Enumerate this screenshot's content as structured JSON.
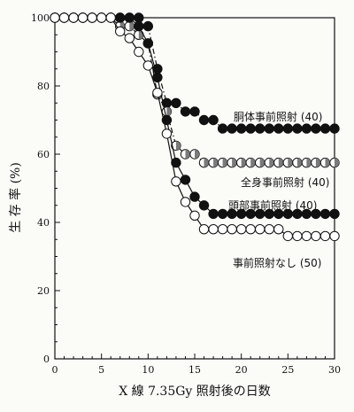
{
  "chart_data": {
    "type": "line",
    "title": "",
    "xlabel": "X 線 7.35Gy 照射後の日数",
    "ylabel": "生 存 率 (%)",
    "xlim": [
      0,
      30
    ],
    "ylim": [
      0,
      100
    ],
    "xticks": [
      0,
      5,
      10,
      15,
      20,
      25,
      30
    ],
    "yticks": [
      0,
      20,
      40,
      60,
      80,
      100
    ],
    "grid": false,
    "legend": "inline labels at right end of each curve",
    "series": [
      {
        "name": "胴体事前照射 (40)",
        "marker": "filled-circle",
        "linestyle": "dashdot",
        "color": "#111111",
        "points": [
          [
            0,
            100
          ],
          [
            1,
            100
          ],
          [
            2,
            100
          ],
          [
            3,
            100
          ],
          [
            4,
            100
          ],
          [
            5,
            100
          ],
          [
            6,
            100
          ],
          [
            7,
            100
          ],
          [
            8,
            100
          ],
          [
            9,
            100
          ],
          [
            10,
            97.5
          ],
          [
            11,
            85
          ],
          [
            12,
            75
          ],
          [
            13,
            75
          ],
          [
            14,
            72.5
          ],
          [
            15,
            72.5
          ],
          [
            16,
            70
          ],
          [
            17,
            70
          ],
          [
            18,
            67.5
          ],
          [
            19,
            67.5
          ],
          [
            20,
            67.5
          ],
          [
            21,
            67.5
          ],
          [
            22,
            67.5
          ],
          [
            23,
            67.5
          ],
          [
            24,
            67.5
          ],
          [
            25,
            67.5
          ],
          [
            26,
            67.5
          ],
          [
            27,
            67.5
          ],
          [
            28,
            67.5
          ],
          [
            29,
            67.5
          ],
          [
            30,
            67.5
          ]
        ]
      },
      {
        "name": "全身事前照射 (40)",
        "marker": "half-filled-circle",
        "linestyle": "dashdot",
        "color": "#111111",
        "points": [
          [
            0,
            100
          ],
          [
            1,
            100
          ],
          [
            2,
            100
          ],
          [
            3,
            100
          ],
          [
            4,
            100
          ],
          [
            5,
            100
          ],
          [
            6,
            100
          ],
          [
            7,
            97.5
          ],
          [
            8,
            97.5
          ],
          [
            9,
            95
          ],
          [
            10,
            92.5
          ],
          [
            11,
            77.5
          ],
          [
            12,
            72.5
          ],
          [
            13,
            62.5
          ],
          [
            14,
            60
          ],
          [
            15,
            60
          ],
          [
            16,
            57.5
          ],
          [
            17,
            57.5
          ],
          [
            18,
            57.5
          ],
          [
            19,
            57.5
          ],
          [
            20,
            57.5
          ],
          [
            21,
            57.5
          ],
          [
            22,
            57.5
          ],
          [
            23,
            57.5
          ],
          [
            24,
            57.5
          ],
          [
            25,
            57.5
          ],
          [
            26,
            57.5
          ],
          [
            27,
            57.5
          ],
          [
            28,
            57.5
          ],
          [
            29,
            57.5
          ],
          [
            30,
            57.5
          ]
        ]
      },
      {
        "name": "頭部事前照射 (40)",
        "marker": "filled-circle",
        "linestyle": "solid",
        "color": "#111111",
        "points": [
          [
            0,
            100
          ],
          [
            1,
            100
          ],
          [
            2,
            100
          ],
          [
            3,
            100
          ],
          [
            4,
            100
          ],
          [
            5,
            100
          ],
          [
            6,
            100
          ],
          [
            7,
            100
          ],
          [
            8,
            100
          ],
          [
            9,
            97.5
          ],
          [
            10,
            92.5
          ],
          [
            11,
            82.5
          ],
          [
            12,
            70
          ],
          [
            13,
            57.5
          ],
          [
            14,
            52.5
          ],
          [
            15,
            47.5
          ],
          [
            16,
            45
          ],
          [
            17,
            42.5
          ],
          [
            18,
            42.5
          ],
          [
            19,
            42.5
          ],
          [
            20,
            42.5
          ],
          [
            21,
            42.5
          ],
          [
            22,
            42.5
          ],
          [
            23,
            42.5
          ],
          [
            24,
            42.5
          ],
          [
            25,
            42.5
          ],
          [
            26,
            42.5
          ],
          [
            27,
            42.5
          ],
          [
            28,
            42.5
          ],
          [
            29,
            42.5
          ],
          [
            30,
            42.5
          ]
        ]
      },
      {
        "name": "事前照射なし (50)",
        "marker": "open-circle",
        "linestyle": "solid",
        "color": "#111111",
        "points": [
          [
            0,
            100
          ],
          [
            1,
            100
          ],
          [
            2,
            100
          ],
          [
            3,
            100
          ],
          [
            4,
            100
          ],
          [
            5,
            100
          ],
          [
            6,
            100
          ],
          [
            7,
            96
          ],
          [
            8,
            94
          ],
          [
            9,
            90
          ],
          [
            10,
            86
          ],
          [
            11,
            78
          ],
          [
            12,
            66
          ],
          [
            13,
            52
          ],
          [
            14,
            46
          ],
          [
            15,
            42
          ],
          [
            16,
            38
          ],
          [
            17,
            38
          ],
          [
            18,
            38
          ],
          [
            19,
            38
          ],
          [
            20,
            38
          ],
          [
            21,
            38
          ],
          [
            22,
            38
          ],
          [
            23,
            38
          ],
          [
            24,
            38
          ],
          [
            25,
            36
          ],
          [
            26,
            36
          ],
          [
            27,
            36
          ],
          [
            28,
            36
          ],
          [
            29,
            36
          ],
          [
            30,
            36
          ]
        ]
      }
    ]
  }
}
